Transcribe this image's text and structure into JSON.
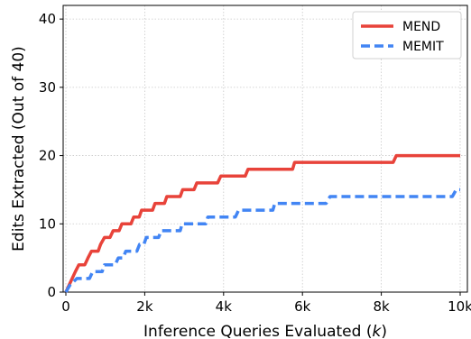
{
  "chart_data": {
    "type": "line",
    "xlabel_main": "Inference Queries Evaluated (",
    "xlabel_var": "k",
    "xlabel_end": ")",
    "ylabel": "Edits Extracted (Out of 40)",
    "xlim": [
      0,
      10000
    ],
    "ylim": [
      0,
      42
    ],
    "x_ticks": [
      0,
      2000,
      4000,
      6000,
      8000,
      10000
    ],
    "x_tick_labels": [
      "0",
      "2k",
      "4k",
      "6k",
      "8k",
      "10k"
    ],
    "y_ticks": [
      0,
      10,
      20,
      30,
      40
    ],
    "y_tick_labels": [
      "0",
      "10",
      "20",
      "30",
      "40"
    ],
    "grid": true,
    "legend_position": "top-right",
    "series": [
      {
        "name": "MEND",
        "color": "#e8433a",
        "style": "solid",
        "points": [
          [
            0,
            0
          ],
          [
            80,
            1
          ],
          [
            160,
            2
          ],
          [
            240,
            3
          ],
          [
            330,
            4
          ],
          [
            480,
            4
          ],
          [
            560,
            5
          ],
          [
            650,
            6
          ],
          [
            820,
            6
          ],
          [
            880,
            7
          ],
          [
            980,
            8
          ],
          [
            1120,
            8
          ],
          [
            1200,
            9
          ],
          [
            1350,
            9
          ],
          [
            1420,
            10
          ],
          [
            1650,
            10
          ],
          [
            1720,
            11
          ],
          [
            1860,
            11
          ],
          [
            1920,
            12
          ],
          [
            2200,
            12
          ],
          [
            2260,
            13
          ],
          [
            2500,
            13
          ],
          [
            2560,
            14
          ],
          [
            2900,
            14
          ],
          [
            2960,
            15
          ],
          [
            3250,
            15
          ],
          [
            3320,
            16
          ],
          [
            3850,
            16
          ],
          [
            3930,
            17
          ],
          [
            4550,
            17
          ],
          [
            4620,
            18
          ],
          [
            5750,
            18
          ],
          [
            5800,
            19
          ],
          [
            8300,
            19
          ],
          [
            8380,
            20
          ],
          [
            10000,
            20
          ]
        ]
      },
      {
        "name": "MEMIT",
        "color": "#4285f4",
        "style": "dashed",
        "points": [
          [
            0,
            0
          ],
          [
            100,
            1
          ],
          [
            280,
            2
          ],
          [
            600,
            2
          ],
          [
            680,
            3
          ],
          [
            920,
            3
          ],
          [
            980,
            4
          ],
          [
            1250,
            4
          ],
          [
            1330,
            5
          ],
          [
            1450,
            5
          ],
          [
            1520,
            6
          ],
          [
            1800,
            6
          ],
          [
            1870,
            7
          ],
          [
            1980,
            7
          ],
          [
            2040,
            8
          ],
          [
            2350,
            8
          ],
          [
            2420,
            9
          ],
          [
            2900,
            9
          ],
          [
            2950,
            10
          ],
          [
            3550,
            10
          ],
          [
            3600,
            11
          ],
          [
            4300,
            11
          ],
          [
            4380,
            12
          ],
          [
            5250,
            12
          ],
          [
            5300,
            13
          ],
          [
            6600,
            13
          ],
          [
            6700,
            14
          ],
          [
            9800,
            14
          ],
          [
            9900,
            15
          ],
          [
            10000,
            15
          ]
        ]
      }
    ]
  }
}
